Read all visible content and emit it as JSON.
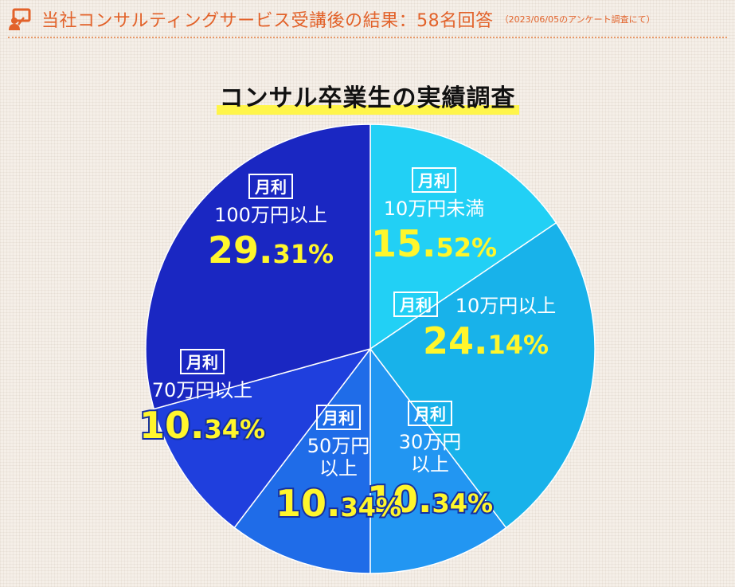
{
  "header": {
    "title": "当社コンサルティングサービス受講後の結果：58名回答",
    "note": "（2023/06/05のアンケート調査にて）",
    "icon": "presentation-icon",
    "color": "#e2622a"
  },
  "chart_data": {
    "type": "pie",
    "title": "コンサル卒業生の実績調査",
    "start": "top",
    "direction": "clockwise",
    "slices": [
      {
        "badge": "月利",
        "label_lines": [
          "10万円未満"
        ],
        "value": 15.52,
        "value_main": "15.",
        "value_small": "52%",
        "color": "#22d0f5"
      },
      {
        "badge": "月利",
        "label_lines": [
          "10万円以上"
        ],
        "value": 24.14,
        "value_main": "24.",
        "value_small": "14%",
        "color": "#18b2ea"
      },
      {
        "badge": "月利",
        "label_lines": [
          "30万円",
          "以上"
        ],
        "value": 10.34,
        "value_main": "10.",
        "value_small": "34%",
        "color": "#2296f2"
      },
      {
        "badge": "月利",
        "label_lines": [
          "50万円",
          "以上"
        ],
        "value": 10.34,
        "value_main": "10.",
        "value_small": "34%",
        "color": "#1f6ce8"
      },
      {
        "badge": "月利",
        "label_lines": [
          "70万円以上"
        ],
        "value": 10.34,
        "value_main": "10.",
        "value_small": "34%",
        "color": "#1f3fdd"
      },
      {
        "badge": "月利",
        "label_lines": [
          "100万円以上"
        ],
        "value": 29.31,
        "value_main": "29.",
        "value_small": "31%",
        "color": "#1a27c2"
      }
    ]
  }
}
